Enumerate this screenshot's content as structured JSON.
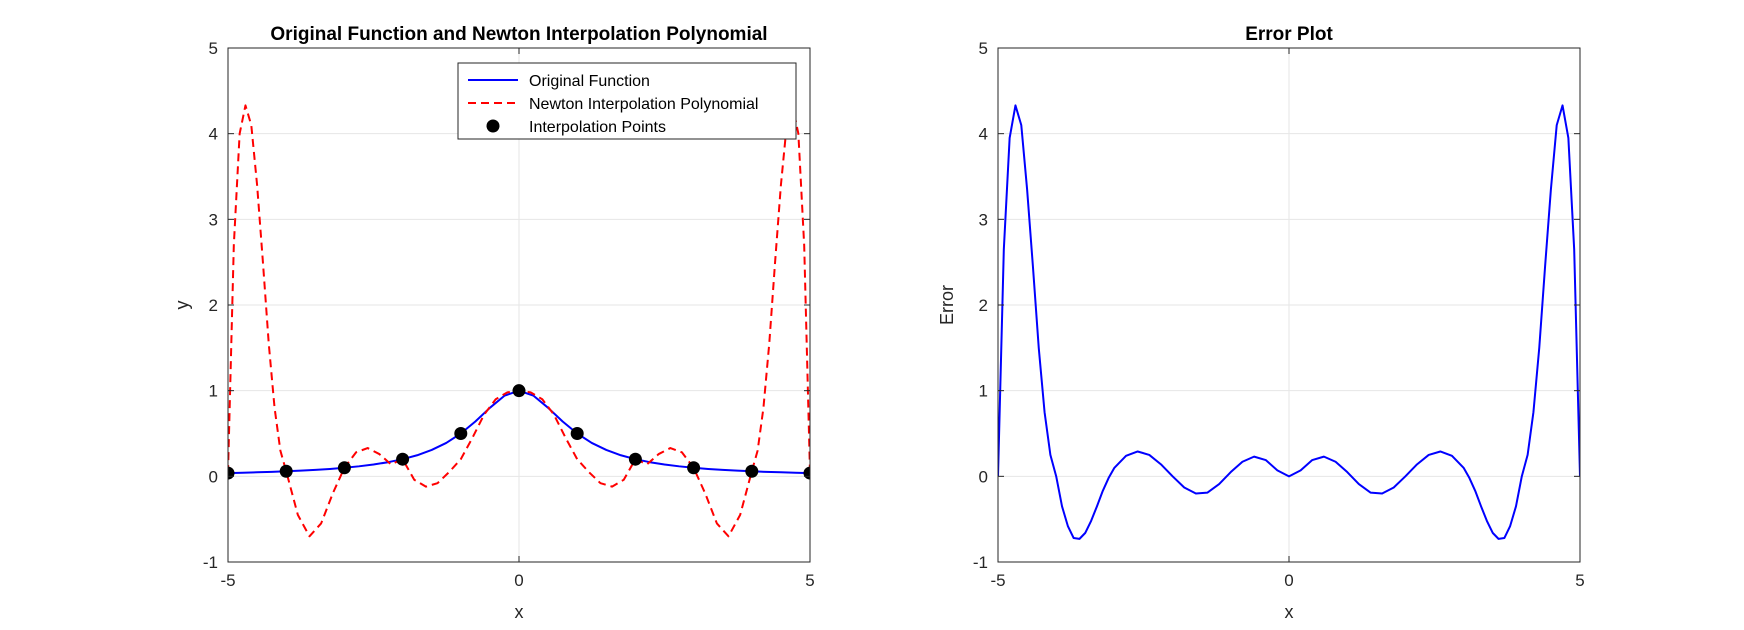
{
  "chart_data": [
    {
      "type": "line",
      "title": "Original Function and Newton Interpolation Polynomial",
      "xlabel": "x",
      "ylabel": "y",
      "xlim": [
        -5,
        5
      ],
      "ylim": [
        -1,
        5
      ],
      "xticks": [
        -5,
        0,
        5
      ],
      "yticks": [
        -1,
        0,
        1,
        2,
        3,
        4,
        5
      ],
      "xtick_labels": [
        "-5",
        "0",
        "5"
      ],
      "ytick_labels": [
        "-1",
        "0",
        "1",
        "2",
        "3",
        "4",
        "5"
      ],
      "grid": true,
      "legend_position": "top-right",
      "series": [
        {
          "name": "Original Function",
          "style": "solid",
          "color": "#0000ff",
          "x": [
            -5,
            -4.75,
            -4.5,
            -4.25,
            -4,
            -3.75,
            -3.5,
            -3.25,
            -3,
            -2.75,
            -2.5,
            -2.25,
            -2,
            -1.75,
            -1.5,
            -1.25,
            -1,
            -0.75,
            -0.5,
            -0.25,
            0,
            0.25,
            0.5,
            0.75,
            1,
            1.25,
            1.5,
            1.75,
            2,
            2.25,
            2.5,
            2.75,
            3,
            3.25,
            3.5,
            3.75,
            4,
            4.25,
            4.5,
            4.75,
            5
          ],
          "y": [
            0.038,
            0.042,
            0.047,
            0.052,
            0.059,
            0.066,
            0.075,
            0.086,
            0.1,
            0.117,
            0.138,
            0.165,
            0.2,
            0.246,
            0.308,
            0.39,
            0.5,
            0.64,
            0.8,
            0.941,
            1.0,
            0.941,
            0.8,
            0.64,
            0.5,
            0.39,
            0.308,
            0.246,
            0.2,
            0.165,
            0.138,
            0.117,
            0.1,
            0.086,
            0.075,
            0.066,
            0.059,
            0.052,
            0.047,
            0.042,
            0.038
          ]
        },
        {
          "name": "Newton Interpolation Polynomial",
          "style": "dashed",
          "color": "#ff0000",
          "x": [
            -5,
            -4.9,
            -4.8,
            -4.7,
            -4.6,
            -4.5,
            -4.4,
            -4.3,
            -4.2,
            -4.1,
            -4,
            -3.8,
            -3.6,
            -3.4,
            -3.2,
            -3,
            -2.8,
            -2.6,
            -2.4,
            -2.2,
            -2,
            -1.8,
            -1.6,
            -1.4,
            -1.2,
            -1,
            -0.8,
            -0.6,
            -0.4,
            -0.2,
            0,
            0.2,
            0.4,
            0.6,
            0.8,
            1,
            1.2,
            1.4,
            1.6,
            1.8,
            2,
            2.2,
            2.4,
            2.6,
            2.8,
            3,
            3.2,
            3.4,
            3.6,
            3.8,
            4,
            4.1,
            4.2,
            4.3,
            4.4,
            4.5,
            4.6,
            4.7,
            4.8,
            4.9,
            5
          ],
          "y": [
            0.038,
            2.7,
            4.0,
            4.33,
            4.1,
            3.4,
            2.5,
            1.55,
            0.8,
            0.3,
            0.059,
            -0.45,
            -0.7,
            -0.55,
            -0.2,
            0.1,
            0.28,
            0.33,
            0.26,
            0.14,
            0.2,
            -0.04,
            -0.12,
            -0.08,
            0.05,
            0.2,
            0.45,
            0.72,
            0.9,
            0.98,
            1.0,
            0.98,
            0.9,
            0.72,
            0.45,
            0.2,
            0.05,
            -0.08,
            -0.12,
            -0.04,
            0.2,
            0.14,
            0.26,
            0.33,
            0.28,
            0.1,
            -0.2,
            -0.55,
            -0.7,
            -0.45,
            0.059,
            0.3,
            0.8,
            1.55,
            2.5,
            3.4,
            4.1,
            4.33,
            4.0,
            2.7,
            0.038
          ]
        },
        {
          "name": "Interpolation Points",
          "style": "markers",
          "color": "#000000",
          "x": [
            -5,
            -4,
            -3,
            -2,
            -1,
            0,
            1,
            2,
            3,
            4,
            5
          ],
          "y": [
            0.038,
            0.059,
            0.1,
            0.2,
            0.5,
            1.0,
            0.5,
            0.2,
            0.1,
            0.059,
            0.038
          ]
        }
      ]
    },
    {
      "type": "line",
      "title": "Error Plot",
      "xlabel": "x",
      "ylabel": "Error",
      "xlim": [
        -5,
        5
      ],
      "ylim": [
        -1,
        5
      ],
      "xticks": [
        -5,
        0,
        5
      ],
      "yticks": [
        -1,
        0,
        1,
        2,
        3,
        4,
        5
      ],
      "xtick_labels": [
        "-5",
        "0",
        "5"
      ],
      "ytick_labels": [
        "-1",
        "0",
        "1",
        "2",
        "3",
        "4",
        "5"
      ],
      "grid": true,
      "series": [
        {
          "style": "solid",
          "color": "#0000ff",
          "x": [
            -5,
            -4.9,
            -4.8,
            -4.7,
            -4.6,
            -4.5,
            -4.4,
            -4.3,
            -4.2,
            -4.1,
            -4,
            -3.9,
            -3.8,
            -3.7,
            -3.6,
            -3.5,
            -3.4,
            -3.3,
            -3.2,
            -3.1,
            -3,
            -2.8,
            -2.6,
            -2.4,
            -2.2,
            -2,
            -1.8,
            -1.6,
            -1.4,
            -1.2,
            -1,
            -0.8,
            -0.6,
            -0.4,
            -0.2,
            0,
            0.2,
            0.4,
            0.6,
            0.8,
            1,
            1.2,
            1.4,
            1.6,
            1.8,
            2,
            2.2,
            2.4,
            2.6,
            2.8,
            3,
            3.1,
            3.2,
            3.3,
            3.4,
            3.5,
            3.6,
            3.7,
            3.8,
            3.9,
            4,
            4.1,
            4.2,
            4.3,
            4.4,
            4.5,
            4.6,
            4.7,
            4.8,
            4.9,
            5
          ],
          "y": [
            0,
            2.65,
            3.95,
            4.33,
            4.1,
            3.35,
            2.45,
            1.5,
            0.75,
            0.25,
            0,
            -0.35,
            -0.58,
            -0.72,
            -0.73,
            -0.66,
            -0.52,
            -0.35,
            -0.17,
            -0.02,
            0.1,
            0.24,
            0.29,
            0.25,
            0.14,
            0,
            -0.13,
            -0.2,
            -0.19,
            -0.09,
            0.05,
            0.17,
            0.23,
            0.19,
            0.07,
            0,
            0.07,
            0.19,
            0.23,
            0.17,
            0.05,
            -0.09,
            -0.19,
            -0.2,
            -0.13,
            0,
            0.14,
            0.25,
            0.29,
            0.24,
            0.1,
            -0.02,
            -0.17,
            -0.35,
            -0.52,
            -0.66,
            -0.73,
            -0.72,
            -0.58,
            -0.35,
            0,
            0.25,
            0.75,
            1.5,
            2.45,
            3.35,
            4.1,
            4.33,
            3.95,
            2.65,
            0
          ]
        }
      ]
    }
  ]
}
